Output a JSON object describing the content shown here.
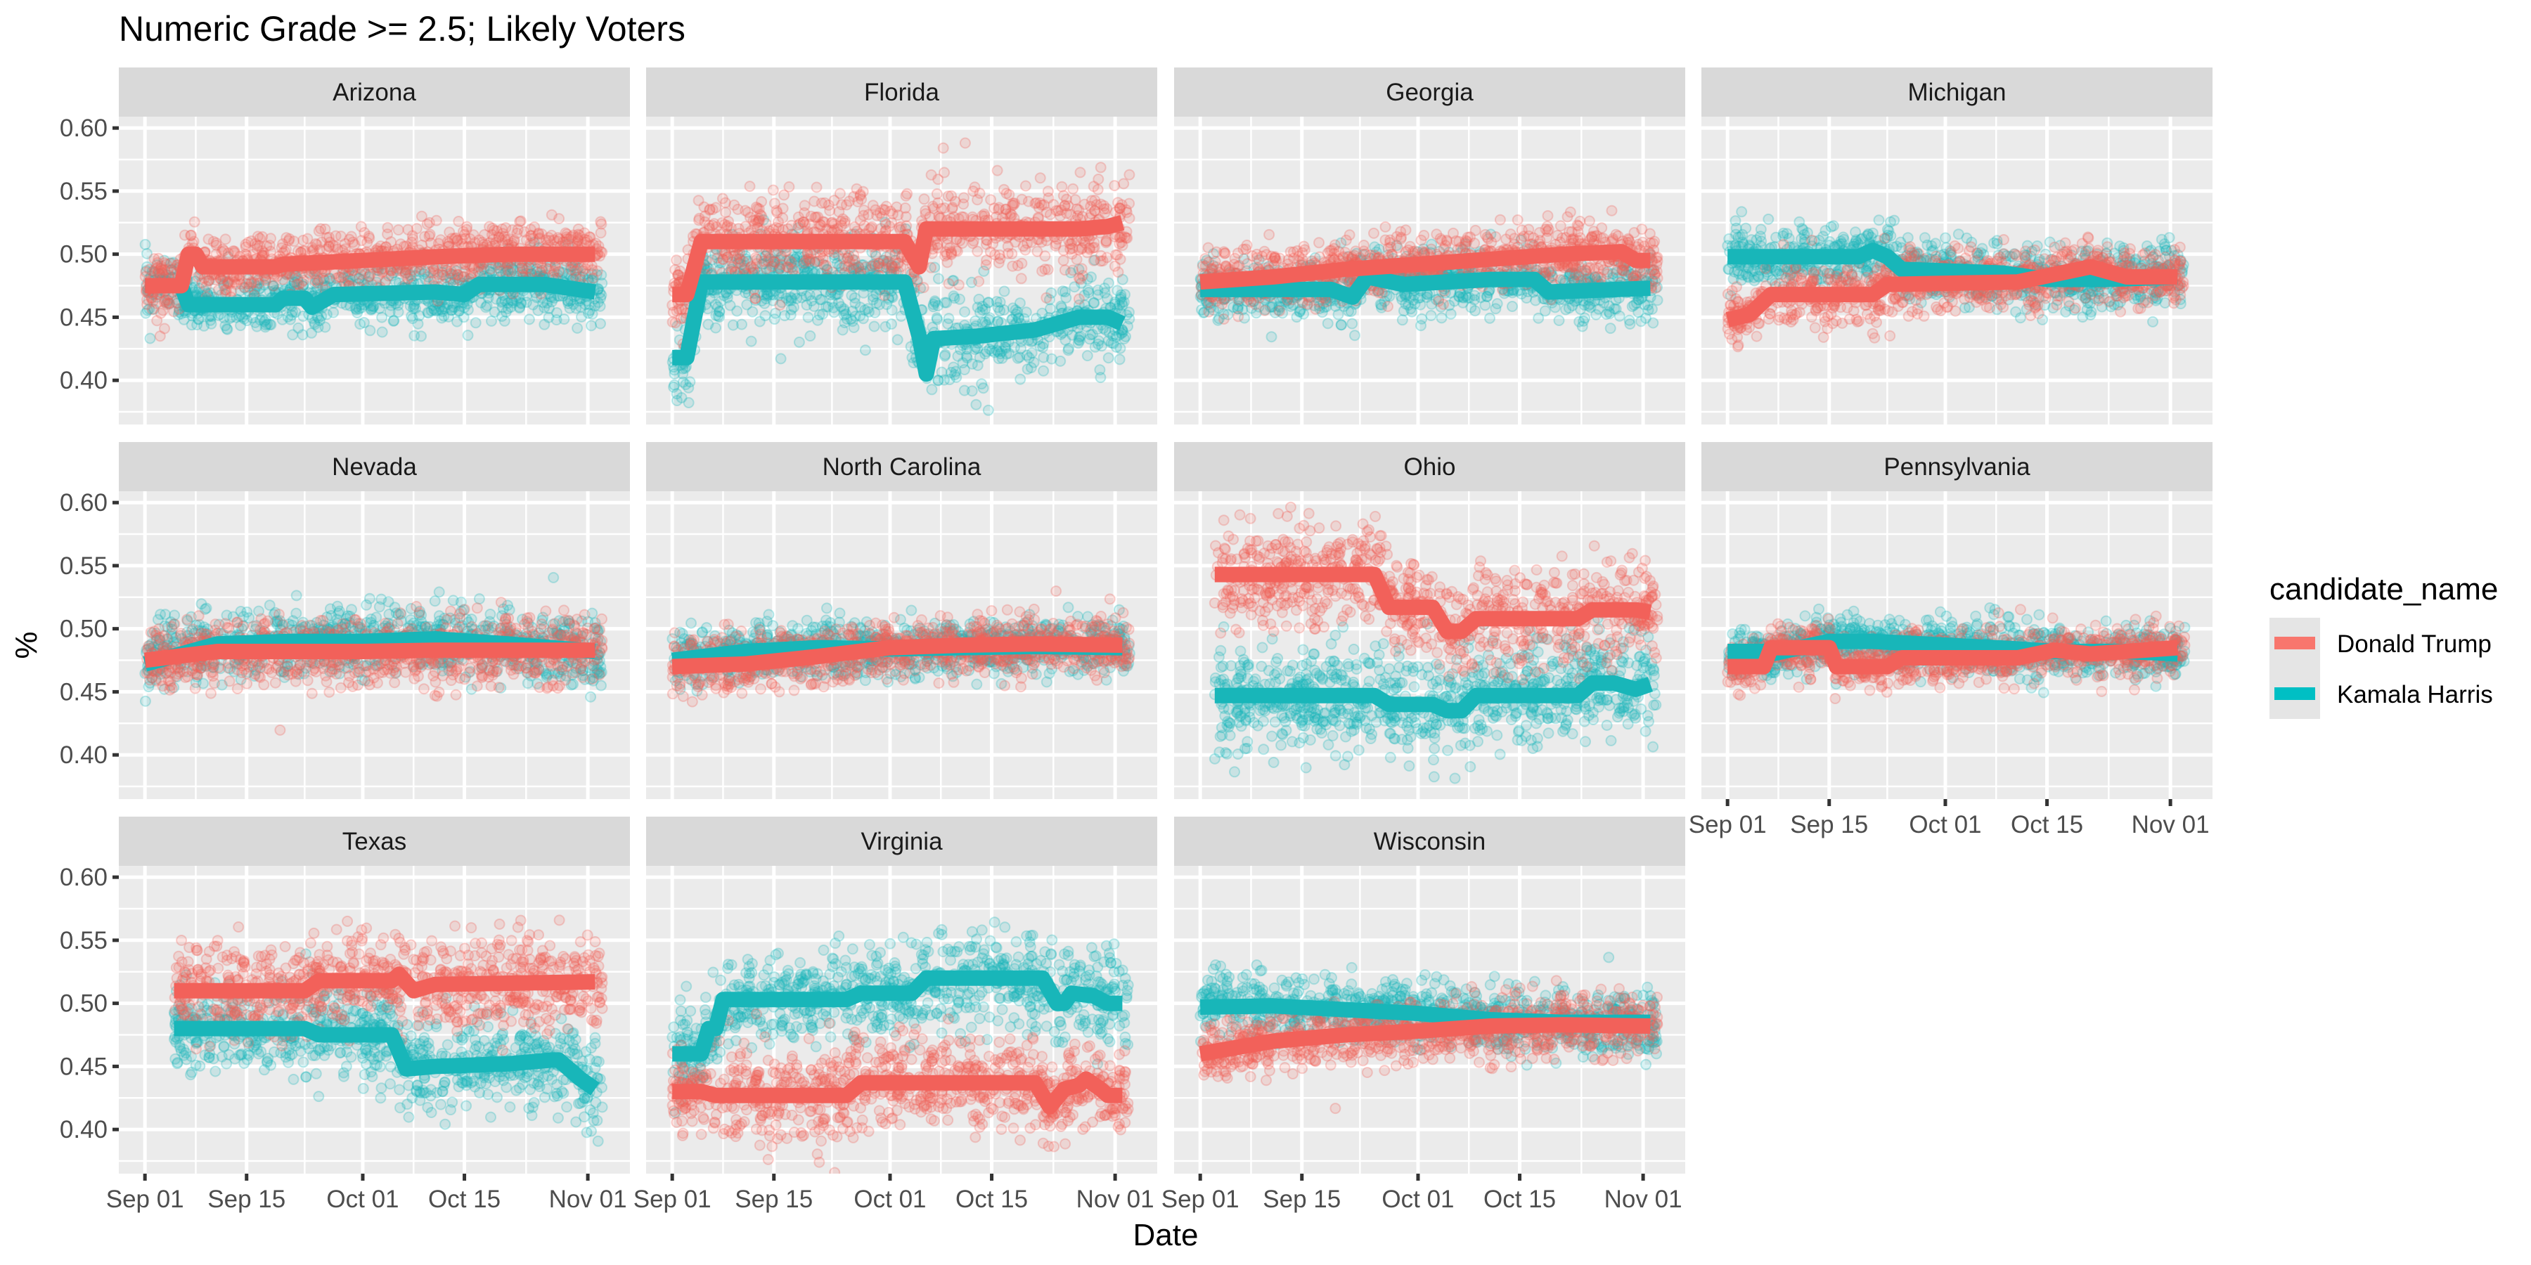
{
  "chart_data": {
    "type": "scatter",
    "title": "Numeric Grade >= 2.5; Likely Voters",
    "xlabel": "Date",
    "ylabel": "%",
    "x_type": "date (days since Sep 01)",
    "xlim_days": [
      -3.6,
      66.8
    ],
    "ylim": [
      0.365,
      0.609
    ],
    "x_ticks": [
      {
        "day": 0,
        "label": "Sep 01"
      },
      {
        "day": 14,
        "label": "Sep 15"
      },
      {
        "day": 30,
        "label": "Oct 01"
      },
      {
        "day": 44,
        "label": "Oct 15"
      },
      {
        "day": 61,
        "label": "Nov 01"
      }
    ],
    "y_ticks": [
      {
        "value": 0.4,
        "label": "0.40"
      },
      {
        "value": 0.45,
        "label": "0.45"
      },
      {
        "value": 0.5,
        "label": "0.50"
      },
      {
        "value": 0.55,
        "label": "0.55"
      },
      {
        "value": 0.6,
        "label": "0.60"
      }
    ],
    "grid": true,
    "legend": {
      "title": "candidate_name",
      "placement": "right",
      "entries": [
        {
          "name": "Donald Trump",
          "color": "#F8766D"
        },
        {
          "name": "Kamala Harris",
          "color": "#00BFC4"
        }
      ]
    },
    "series_colors": {
      "Donald Trump": "#F2615A",
      "Kamala Harris": "#18B6B9"
    },
    "panels": [
      {
        "state": "Arizona",
        "noise": 0.012,
        "trump": [
          [
            0,
            0.475
          ],
          [
            5,
            0.475
          ],
          [
            6,
            0.5
          ],
          [
            7,
            0.5
          ],
          [
            8,
            0.49
          ],
          [
            18,
            0.49
          ],
          [
            19,
            0.492
          ],
          [
            30,
            0.495
          ],
          [
            40,
            0.498
          ],
          [
            50,
            0.5
          ],
          [
            62,
            0.5
          ]
        ],
        "harris": [
          [
            0,
            0.475
          ],
          [
            5,
            0.475
          ],
          [
            6,
            0.46
          ],
          [
            18,
            0.46
          ],
          [
            19,
            0.465
          ],
          [
            22,
            0.465
          ],
          [
            23,
            0.458
          ],
          [
            26,
            0.468
          ],
          [
            40,
            0.47
          ],
          [
            44,
            0.468
          ],
          [
            46,
            0.476
          ],
          [
            55,
            0.476
          ],
          [
            62,
            0.47
          ]
        ]
      },
      {
        "state": "Florida",
        "noise": 0.018,
        "trump": [
          [
            0,
            0.468
          ],
          [
            2,
            0.468
          ],
          [
            4,
            0.51
          ],
          [
            32,
            0.51
          ],
          [
            34,
            0.49
          ],
          [
            35,
            0.52
          ],
          [
            56,
            0.52
          ],
          [
            60,
            0.522
          ],
          [
            62,
            0.525
          ]
        ],
        "harris": [
          [
            0,
            0.418
          ],
          [
            2,
            0.418
          ],
          [
            4,
            0.478
          ],
          [
            32,
            0.478
          ],
          [
            34,
            0.435
          ],
          [
            35,
            0.405
          ],
          [
            36,
            0.433
          ],
          [
            42,
            0.435
          ],
          [
            50,
            0.44
          ],
          [
            56,
            0.45
          ],
          [
            60,
            0.45
          ],
          [
            62,
            0.445
          ]
        ]
      },
      {
        "state": "Georgia",
        "noise": 0.012,
        "trump": [
          [
            0,
            0.478
          ],
          [
            10,
            0.482
          ],
          [
            20,
            0.488
          ],
          [
            30,
            0.492
          ],
          [
            40,
            0.496
          ],
          [
            50,
            0.5
          ],
          [
            58,
            0.502
          ],
          [
            60,
            0.495
          ],
          [
            62,
            0.495
          ]
        ],
        "harris": [
          [
            0,
            0.472
          ],
          [
            18,
            0.472
          ],
          [
            21,
            0.466
          ],
          [
            23,
            0.482
          ],
          [
            28,
            0.476
          ],
          [
            40,
            0.48
          ],
          [
            46,
            0.48
          ],
          [
            48,
            0.47
          ],
          [
            62,
            0.473
          ]
        ]
      },
      {
        "state": "Michigan",
        "noise": 0.012,
        "trump": [
          [
            0,
            0.448
          ],
          [
            3,
            0.452
          ],
          [
            6,
            0.468
          ],
          [
            20,
            0.468
          ],
          [
            22,
            0.476
          ],
          [
            40,
            0.478
          ],
          [
            50,
            0.49
          ],
          [
            55,
            0.482
          ],
          [
            62,
            0.482
          ]
        ],
        "harris": [
          [
            0,
            0.498
          ],
          [
            18,
            0.498
          ],
          [
            20,
            0.503
          ],
          [
            22,
            0.498
          ],
          [
            24,
            0.488
          ],
          [
            38,
            0.485
          ],
          [
            44,
            0.48
          ],
          [
            52,
            0.48
          ],
          [
            62,
            0.482
          ]
        ]
      },
      {
        "state": "Nevada",
        "noise": 0.013,
        "trump": [
          [
            0,
            0.475
          ],
          [
            10,
            0.482
          ],
          [
            20,
            0.482
          ],
          [
            30,
            0.482
          ],
          [
            40,
            0.483
          ],
          [
            50,
            0.483
          ],
          [
            62,
            0.483
          ]
        ],
        "harris": [
          [
            0,
            0.472
          ],
          [
            10,
            0.488
          ],
          [
            20,
            0.49
          ],
          [
            30,
            0.49
          ],
          [
            40,
            0.492
          ],
          [
            50,
            0.488
          ],
          [
            62,
            0.482
          ]
        ]
      },
      {
        "state": "North Carolina",
        "noise": 0.011,
        "trump": [
          [
            0,
            0.47
          ],
          [
            10,
            0.472
          ],
          [
            20,
            0.478
          ],
          [
            30,
            0.485
          ],
          [
            40,
            0.487
          ],
          [
            50,
            0.488
          ],
          [
            62,
            0.487
          ]
        ],
        "harris": [
          [
            0,
            0.475
          ],
          [
            10,
            0.482
          ],
          [
            20,
            0.485
          ],
          [
            30,
            0.484
          ],
          [
            40,
            0.485
          ],
          [
            50,
            0.486
          ],
          [
            62,
            0.485
          ]
        ]
      },
      {
        "state": "Ohio",
        "noise": 0.02,
        "trump": [
          [
            2,
            0.543
          ],
          [
            24,
            0.543
          ],
          [
            26,
            0.517
          ],
          [
            32,
            0.517
          ],
          [
            34,
            0.498
          ],
          [
            36,
            0.498
          ],
          [
            38,
            0.508
          ],
          [
            52,
            0.508
          ],
          [
            54,
            0.515
          ],
          [
            60,
            0.515
          ],
          [
            62,
            0.513
          ]
        ],
        "harris": [
          [
            2,
            0.447
          ],
          [
            24,
            0.447
          ],
          [
            26,
            0.44
          ],
          [
            32,
            0.44
          ],
          [
            34,
            0.435
          ],
          [
            36,
            0.435
          ],
          [
            38,
            0.447
          ],
          [
            52,
            0.447
          ],
          [
            54,
            0.457
          ],
          [
            57,
            0.457
          ],
          [
            60,
            0.452
          ],
          [
            62,
            0.456
          ]
        ]
      },
      {
        "state": "Pennsylvania",
        "noise": 0.01,
        "trump": [
          [
            0,
            0.47
          ],
          [
            5,
            0.47
          ],
          [
            6,
            0.485
          ],
          [
            14,
            0.485
          ],
          [
            15,
            0.47
          ],
          [
            22,
            0.47
          ],
          [
            24,
            0.477
          ],
          [
            40,
            0.477
          ],
          [
            45,
            0.483
          ],
          [
            50,
            0.48
          ],
          [
            62,
            0.485
          ]
        ],
        "harris": [
          [
            0,
            0.482
          ],
          [
            5,
            0.482
          ],
          [
            6,
            0.48
          ],
          [
            14,
            0.49
          ],
          [
            20,
            0.49
          ],
          [
            30,
            0.487
          ],
          [
            40,
            0.484
          ],
          [
            45,
            0.482
          ],
          [
            55,
            0.482
          ],
          [
            62,
            0.48
          ]
        ]
      },
      {
        "state": "Texas",
        "noise": 0.018,
        "trump": [
          [
            4,
            0.51
          ],
          [
            22,
            0.51
          ],
          [
            24,
            0.518
          ],
          [
            34,
            0.518
          ],
          [
            35,
            0.523
          ],
          [
            37,
            0.51
          ],
          [
            40,
            0.515
          ],
          [
            62,
            0.517
          ]
        ],
        "harris": [
          [
            4,
            0.48
          ],
          [
            22,
            0.48
          ],
          [
            24,
            0.475
          ],
          [
            34,
            0.475
          ],
          [
            36,
            0.448
          ],
          [
            40,
            0.45
          ],
          [
            50,
            0.452
          ],
          [
            56,
            0.455
          ],
          [
            57,
            0.455
          ],
          [
            60,
            0.44
          ],
          [
            62,
            0.432
          ]
        ]
      },
      {
        "state": "Virginia",
        "noise": 0.018,
        "trump": [
          [
            0,
            0.43
          ],
          [
            4,
            0.43
          ],
          [
            6,
            0.427
          ],
          [
            9,
            0.427
          ],
          [
            24,
            0.427
          ],
          [
            26,
            0.437
          ],
          [
            32,
            0.437
          ],
          [
            50,
            0.437
          ],
          [
            52,
            0.418
          ],
          [
            54,
            0.432
          ],
          [
            56,
            0.435
          ],
          [
            57,
            0.44
          ],
          [
            59,
            0.432
          ],
          [
            60,
            0.427
          ],
          [
            62,
            0.427
          ]
        ],
        "harris": [
          [
            0,
            0.46
          ],
          [
            4,
            0.46
          ],
          [
            5,
            0.48
          ],
          [
            6,
            0.48
          ],
          [
            7,
            0.503
          ],
          [
            24,
            0.503
          ],
          [
            26,
            0.508
          ],
          [
            33,
            0.508
          ],
          [
            35,
            0.52
          ],
          [
            51,
            0.52
          ],
          [
            53,
            0.5
          ],
          [
            54,
            0.5
          ],
          [
            55,
            0.508
          ],
          [
            58,
            0.506
          ],
          [
            60,
            0.5
          ],
          [
            62,
            0.5
          ]
        ]
      },
      {
        "state": "Wisconsin",
        "noise": 0.012,
        "trump": [
          [
            0,
            0.46
          ],
          [
            10,
            0.47
          ],
          [
            20,
            0.475
          ],
          [
            30,
            0.478
          ],
          [
            40,
            0.482
          ],
          [
            50,
            0.483
          ],
          [
            62,
            0.482
          ]
        ],
        "harris": [
          [
            0,
            0.497
          ],
          [
            10,
            0.498
          ],
          [
            20,
            0.495
          ],
          [
            30,
            0.492
          ],
          [
            40,
            0.487
          ],
          [
            50,
            0.485
          ],
          [
            62,
            0.485
          ]
        ]
      }
    ]
  }
}
